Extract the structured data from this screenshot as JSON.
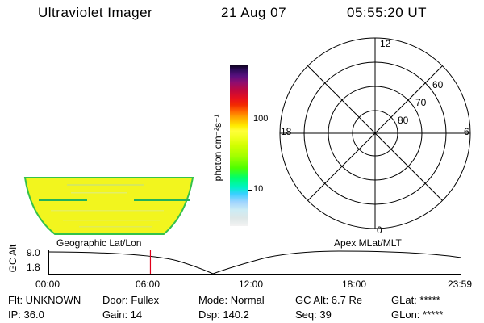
{
  "header": {
    "instrument": "Ultraviolet Imager",
    "date": "21 Aug 07",
    "time": "05:55:20 UT"
  },
  "colorbar": {
    "unit_label": "photon cm⁻²s⁻¹",
    "tick_labels": [
      "100",
      "10"
    ]
  },
  "polar_plot": {
    "mlt_labels": {
      "top": "12",
      "left": "18",
      "right": "6",
      "bottom": "0"
    },
    "lat_labels": [
      "60",
      "70",
      "80"
    ]
  },
  "altitude_panel": {
    "axis_label": "GC Alt",
    "y_ticks": [
      "9.0",
      "1.8"
    ],
    "left_title": "Geographic Lat/Lon",
    "right_title": "Apex MLat/MLT",
    "x_ticks": [
      "00:00",
      "06:00",
      "12:00",
      "18:00",
      "23:59"
    ],
    "current_time_fraction": 0.247
  },
  "info_rows": [
    [
      "Flt: UNKNOWN",
      "Door: Fullex",
      "Mode: Normal",
      "GC Alt: 6.7 Re",
      "GLat: *****"
    ],
    [
      "IP: 36.0",
      "Gain: 14",
      "Dsp:   140.2",
      "Seq: 39",
      "GLon: *****"
    ]
  ],
  "colors": {
    "swath_fill": "#f2f51e",
    "swath_edge": "#34c24a",
    "time_marker": "#e0001a"
  }
}
